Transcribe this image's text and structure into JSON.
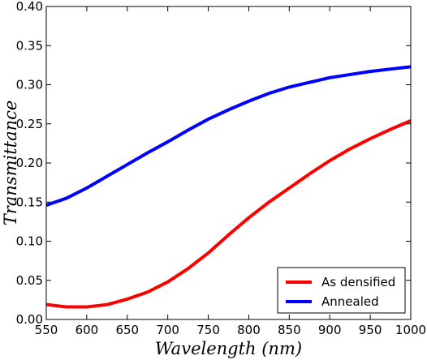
{
  "chart_data": {
    "type": "line",
    "title": "",
    "xlabel": "Wavelength (nm)",
    "ylabel": "Transmittance",
    "xlim": [
      550,
      1000
    ],
    "ylim": [
      0.0,
      0.4
    ],
    "xticks": [
      "550",
      "600",
      "650",
      "700",
      "750",
      "800",
      "850",
      "900",
      "950",
      "1000"
    ],
    "yticks": [
      "0.00",
      "0.05",
      "0.10",
      "0.15",
      "0.20",
      "0.25",
      "0.30",
      "0.35",
      "0.40"
    ],
    "xtick_values": [
      550,
      600,
      650,
      700,
      750,
      800,
      850,
      900,
      950,
      1000
    ],
    "ytick_values": [
      0.0,
      0.05,
      0.1,
      0.15,
      0.2,
      0.25,
      0.3,
      0.35,
      0.4
    ],
    "grid": false,
    "legend_position": "bottom-right",
    "x": [
      550,
      575,
      600,
      625,
      650,
      675,
      700,
      725,
      750,
      775,
      800,
      825,
      850,
      875,
      900,
      925,
      950,
      975,
      1000
    ],
    "series": [
      {
        "name": "As densified",
        "color": "#ff0000",
        "values": [
          0.019,
          0.016,
          0.016,
          0.019,
          0.026,
          0.035,
          0.048,
          0.065,
          0.085,
          0.108,
          0.13,
          0.15,
          0.168,
          0.186,
          0.203,
          0.218,
          0.231,
          0.243,
          0.254
        ]
      },
      {
        "name": "Annealed",
        "color": "#0000ff",
        "values": [
          0.146,
          0.155,
          0.168,
          0.183,
          0.198,
          0.213,
          0.227,
          0.242,
          0.256,
          0.268,
          0.279,
          0.289,
          0.297,
          0.303,
          0.309,
          0.313,
          0.317,
          0.32,
          0.323
        ]
      }
    ]
  }
}
